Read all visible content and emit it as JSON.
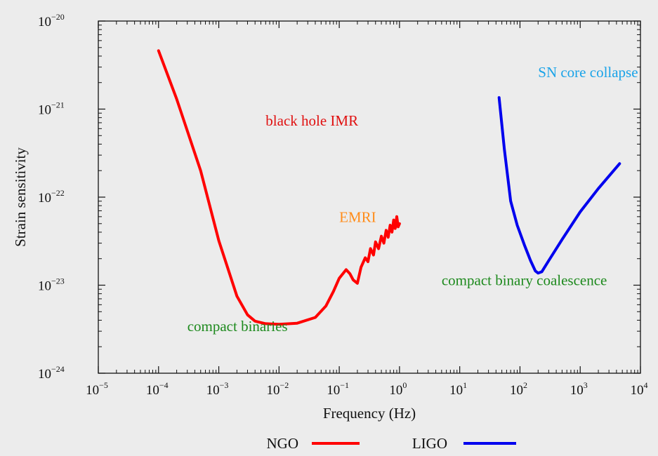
{
  "chart_data": {
    "type": "line",
    "xlabel": "Frequency (Hz)",
    "ylabel": "Strain sensitivity",
    "xscale": "log",
    "yscale": "log",
    "xlim": [
      1e-05,
      10000
    ],
    "ylim": [
      1e-24,
      1e-20
    ],
    "grid": false,
    "legend_position": "bottom-center",
    "x_ticks": [
      {
        "base": "10",
        "exp": "−5",
        "value": 1e-05
      },
      {
        "base": "10",
        "exp": "−4",
        "value": 0.0001
      },
      {
        "base": "10",
        "exp": "−3",
        "value": 0.001
      },
      {
        "base": "10",
        "exp": "−2",
        "value": 0.01
      },
      {
        "base": "10",
        "exp": "−1",
        "value": 0.1
      },
      {
        "base": "10",
        "exp": "0",
        "value": 1
      },
      {
        "base": "10",
        "exp": "1",
        "value": 10
      },
      {
        "base": "10",
        "exp": "2",
        "value": 100
      },
      {
        "base": "10",
        "exp": "3",
        "value": 1000
      },
      {
        "base": "10",
        "exp": "4",
        "value": 10000
      }
    ],
    "y_ticks": [
      {
        "base": "10",
        "exp": "−24",
        "value": 1e-24
      },
      {
        "base": "10",
        "exp": "−23",
        "value": 1e-23
      },
      {
        "base": "10",
        "exp": "−22",
        "value": 1e-22
      },
      {
        "base": "10",
        "exp": "−21",
        "value": 1e-21
      },
      {
        "base": "10",
        "exp": "−20",
        "value": 1e-20
      }
    ],
    "series": [
      {
        "name": "NGO",
        "color": "#ff0000",
        "x": [
          0.0001,
          0.0002,
          0.0005,
          0.001,
          0.002,
          0.003,
          0.004,
          0.006,
          0.01,
          0.02,
          0.04,
          0.06,
          0.08,
          0.1,
          0.13,
          0.15,
          0.17,
          0.2,
          0.23,
          0.27,
          0.3,
          0.33,
          0.37,
          0.4,
          0.45,
          0.5,
          0.55,
          0.6,
          0.65,
          0.7,
          0.75,
          0.8,
          0.85,
          0.9,
          0.95,
          1.0
        ],
        "y": [
          4.6e-21,
          1.3e-21,
          2e-22,
          3.2e-23,
          7.5e-24,
          4.6e-24,
          3.9e-24,
          3.65e-24,
          3.6e-24,
          3.7e-24,
          4.3e-24,
          5.8e-24,
          8.5e-24,
          1.2e-23,
          1.5e-23,
          1.35e-23,
          1.15e-23,
          1.05e-23,
          1.6e-23,
          2.05e-23,
          1.85e-23,
          2.6e-23,
          2.2e-23,
          3.1e-23,
          2.6e-23,
          3.6e-23,
          3e-23,
          4.2e-23,
          3.5e-23,
          4.8e-23,
          4e-23,
          5.5e-23,
          4.4e-23,
          6e-23,
          4.6e-23,
          5e-23
        ]
      },
      {
        "name": "LIGO",
        "color": "#0000ee",
        "x": [
          45,
          55,
          70,
          90,
          120,
          150,
          180,
          200,
          230,
          300,
          500,
          1000,
          2000,
          4500
        ],
        "y": [
          1.35e-21,
          3.5e-22,
          9e-23,
          4.8e-23,
          2.8e-23,
          1.9e-23,
          1.45e-23,
          1.37e-23,
          1.42e-23,
          1.9e-23,
          3.3e-23,
          6.8e-23,
          1.25e-22,
          2.4e-22
        ]
      }
    ],
    "annotations": [
      {
        "text": "black hole IMR",
        "color": "#e01010",
        "x": 0.006,
        "y": 6.5e-22
      },
      {
        "text": "EMRI",
        "color": "#ff8c1a",
        "x": 0.1,
        "y": 5.2e-23
      },
      {
        "text": "SN core collapse",
        "color": "#1aa3e8",
        "x": 200,
        "y": 2.3e-21
      },
      {
        "text": "compact binary coalescence",
        "color": "#1e8a1e",
        "x": 5,
        "y": 1e-23
      },
      {
        "text": "compact binaries",
        "color": "#1e8a1e",
        "x": 0.0003,
        "y": 3e-24
      }
    ]
  }
}
